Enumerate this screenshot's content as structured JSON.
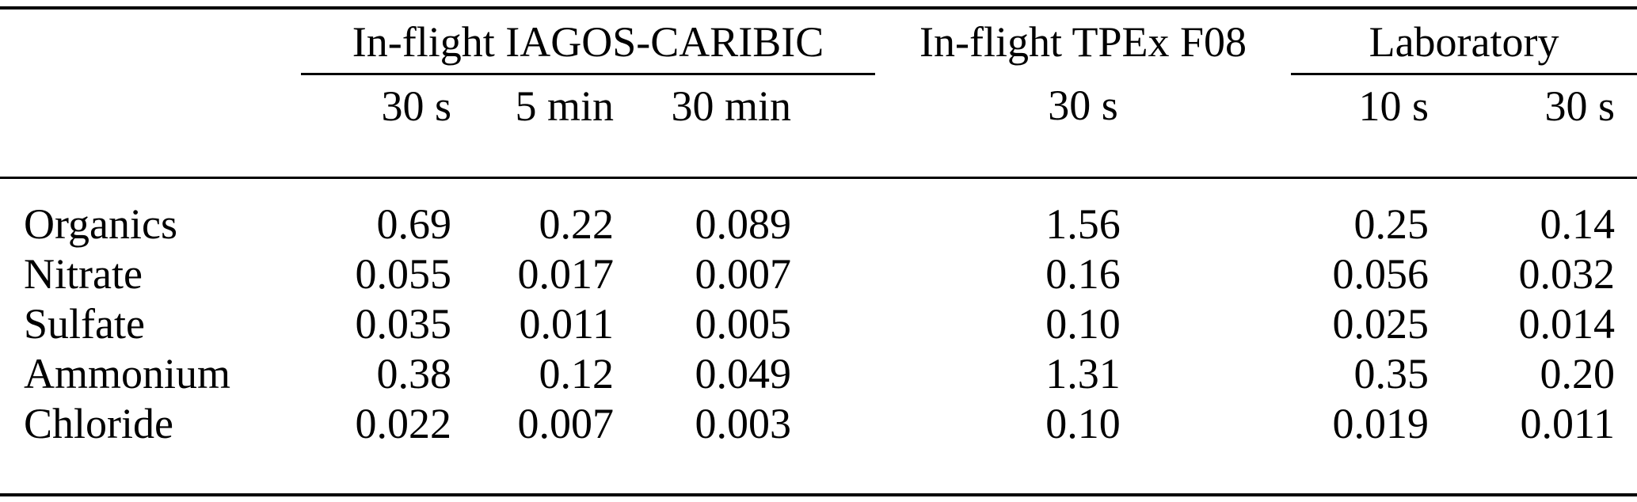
{
  "colors": {
    "background": "#ffffff",
    "text": "#000000",
    "rule": "#000000"
  },
  "table": {
    "corner_label": "",
    "groups": {
      "iagos": {
        "label": "In-flight IAGOS-CARIBIC",
        "span": 3
      },
      "tpex": {
        "label": "In-flight TPEx F08",
        "span": 1
      },
      "lab": {
        "label": "Laboratory",
        "span": 2
      }
    },
    "subheaders": [
      "30 s",
      "5 min",
      "30 min",
      "30 s",
      "10 s",
      "30 s"
    ],
    "rows": [
      {
        "label": "Organics",
        "values": [
          "0.69",
          "0.22",
          "0.089",
          "1.56",
          "0.25",
          "0.14"
        ]
      },
      {
        "label": "Nitrate",
        "values": [
          "0.055",
          "0.017",
          "0.007",
          "0.16",
          "0.056",
          "0.032"
        ]
      },
      {
        "label": "Sulfate",
        "values": [
          "0.035",
          "0.011",
          "0.005",
          "0.10",
          "0.025",
          "0.014"
        ]
      },
      {
        "label": "Ammonium",
        "values": [
          "0.38",
          "0.12",
          "0.049",
          "1.31",
          "0.35",
          "0.20"
        ]
      },
      {
        "label": "Chloride",
        "values": [
          "0.022",
          "0.007",
          "0.003",
          "0.10",
          "0.019",
          "0.011"
        ]
      }
    ]
  }
}
